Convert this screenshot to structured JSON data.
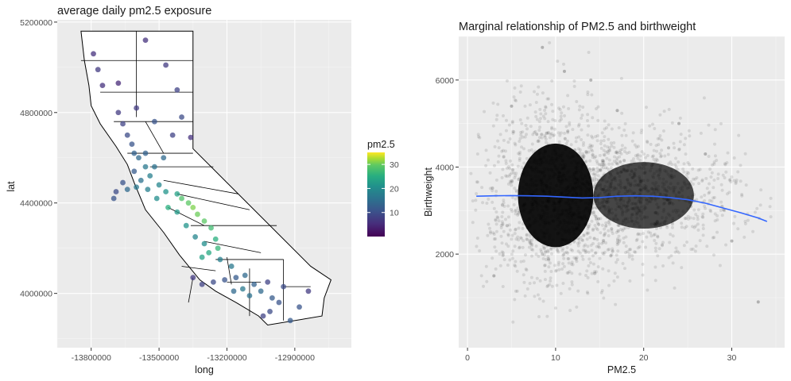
{
  "chart_data": [
    {
      "type": "scatter",
      "title": "average daily pm2.5 exposure",
      "xlabel": "long",
      "ylabel": "lat",
      "xlim": [
        -13950000,
        -12650000
      ],
      "ylim": [
        3760000,
        5210000
      ],
      "x_ticks": [
        -13800000,
        -13500000,
        -13200000,
        -12900000
      ],
      "x_tick_labels": [
        "-13800000",
        "-13500000",
        "-13200000",
        "-12900000"
      ],
      "y_ticks": [
        4000000,
        4400000,
        4800000,
        5200000
      ],
      "y_tick_labels": [
        "4000000",
        "4400000",
        "4800000",
        "5200000"
      ],
      "grid": true,
      "legend": {
        "title": "pm2.5",
        "placement": "right",
        "type": "colorbar",
        "colormap": "viridis",
        "range": [
          0,
          35
        ],
        "ticks": [
          10,
          20,
          30
        ],
        "tick_labels": [
          "10",
          "20",
          "30"
        ]
      },
      "outline": [
        [
          -13845000,
          5160000
        ],
        [
          -13350000,
          5160000
        ],
        [
          -13350000,
          4640000
        ],
        [
          -12830000,
          4120000
        ],
        [
          -12740000,
          4060000
        ],
        [
          -12770000,
          3980000
        ],
        [
          -12780000,
          3900000
        ],
        [
          -13020000,
          3860000
        ],
        [
          -13060000,
          3900000
        ],
        [
          -13160000,
          3960000
        ],
        [
          -13250000,
          4010000
        ],
        [
          -13320000,
          4060000
        ],
        [
          -13410000,
          4170000
        ],
        [
          -13480000,
          4270000
        ],
        [
          -13560000,
          4370000
        ],
        [
          -13610000,
          4490000
        ],
        [
          -13640000,
          4570000
        ],
        [
          -13690000,
          4650000
        ],
        [
          -13760000,
          4750000
        ],
        [
          -13800000,
          4830000
        ],
        [
          -13810000,
          4920000
        ],
        [
          -13830000,
          5030000
        ],
        [
          -13845000,
          5160000
        ]
      ],
      "series": [
        {
          "points": [
            [
              -13460000,
              4380000,
              22
            ],
            [
              -13400000,
              4420000,
              25
            ],
            [
              -13350000,
              4380000,
              28
            ],
            [
              -13330000,
              4350000,
              27
            ],
            [
              -13300000,
              4320000,
              26
            ],
            [
              -13270000,
              4290000,
              24
            ],
            [
              -13250000,
              4240000,
              22
            ],
            [
              -13240000,
              4200000,
              23
            ],
            [
              -13280000,
              4180000,
              21
            ],
            [
              -13310000,
              4160000,
              20
            ],
            [
              -13370000,
              4400000,
              26
            ],
            [
              -13420000,
              4440000,
              20
            ],
            [
              -13470000,
              4450000,
              18
            ],
            [
              -13500000,
              4480000,
              16
            ],
            [
              -13540000,
              4520000,
              15
            ],
            [
              -13560000,
              4560000,
              14
            ],
            [
              -13590000,
              4600000,
              12
            ],
            [
              -13610000,
              4620000,
              11
            ],
            [
              -13620000,
              4660000,
              9
            ],
            [
              -13640000,
              4700000,
              8
            ],
            [
              -13660000,
              4750000,
              7
            ],
            [
              -13680000,
              4800000,
              6
            ],
            [
              -13520000,
              4560000,
              13
            ],
            [
              -13480000,
              4600000,
              12
            ],
            [
              -13560000,
              4620000,
              11
            ],
            [
              -13610000,
              4540000,
              10
            ],
            [
              -13660000,
              4490000,
              9
            ],
            [
              -13690000,
              4450000,
              8
            ],
            [
              -13700000,
              4420000,
              9
            ],
            [
              -13640000,
              4460000,
              12
            ],
            [
              -13600000,
              4470000,
              14
            ],
            [
              -13580000,
              4500000,
              13
            ],
            [
              -13550000,
              4460000,
              15
            ],
            [
              -13510000,
              4420000,
              17
            ],
            [
              -13420000,
              4360000,
              19
            ],
            [
              -13380000,
              4300000,
              18
            ],
            [
              -13340000,
              4250000,
              16
            ],
            [
              -13300000,
              4220000,
              17
            ],
            [
              -13230000,
              4150000,
              15
            ],
            [
              -13180000,
              4120000,
              14
            ],
            [
              -13120000,
              4080000,
              12
            ],
            [
              -13160000,
              4070000,
              10
            ],
            [
              -13210000,
              4060000,
              9
            ],
            [
              -13260000,
              4050000,
              8
            ],
            [
              -13310000,
              4040000,
              7
            ],
            [
              -13350000,
              4070000,
              6
            ],
            [
              -13080000,
              4040000,
              11
            ],
            [
              -13050000,
              4010000,
              12
            ],
            [
              -13000000,
              3980000,
              10
            ],
            [
              -12970000,
              3960000,
              9
            ],
            [
              -13010000,
              3920000,
              8
            ],
            [
              -13040000,
              3900000,
              7
            ],
            [
              -13100000,
              3990000,
              13
            ],
            [
              -13130000,
              4020000,
              14
            ],
            [
              -13170000,
              4010000,
              12
            ],
            [
              -12920000,
              3880000,
              10
            ],
            [
              -12880000,
              3940000,
              9
            ],
            [
              -12950000,
              4030000,
              8
            ],
            [
              -13020000,
              4050000,
              7
            ],
            [
              -12840000,
              4010000,
              6
            ],
            [
              -13790000,
              5060000,
              5
            ],
            [
              -13770000,
              4990000,
              6
            ],
            [
              -13750000,
              4920000,
              5
            ],
            [
              -13560000,
              5120000,
              5
            ],
            [
              -13470000,
              5010000,
              6
            ],
            [
              -13420000,
              4900000,
              7
            ],
            [
              -13400000,
              4780000,
              8
            ],
            [
              -13440000,
              4700000,
              7
            ],
            [
              -13360000,
              4690000,
              5
            ],
            [
              -13520000,
              4760000,
              9
            ],
            [
              -13600000,
              4820000,
              6
            ],
            [
              -13680000,
              4930000,
              4
            ]
          ]
        }
      ]
    },
    {
      "type": "scatter",
      "title": "Marginal relationship of PM2.5 and birthweight",
      "xlabel": "PM2.5",
      "ylabel": "Birthweight",
      "xlim": [
        -1,
        36
      ],
      "ylim": [
        -150,
        7000
      ],
      "x_ticks": [
        0,
        10,
        20,
        30
      ],
      "x_tick_labels": [
        "0",
        "10",
        "20",
        "30"
      ],
      "y_ticks": [
        2000,
        4000,
        6000
      ],
      "y_tick_labels": [
        "2000",
        "4000",
        "6000"
      ],
      "grid": true,
      "smooth_line": {
        "color": "#3366ff",
        "x": [
          1,
          3,
          5,
          7,
          9,
          11,
          13,
          15,
          17,
          19,
          21,
          23,
          25,
          27,
          29,
          31,
          33,
          34
        ],
        "y": [
          3330,
          3340,
          3345,
          3340,
          3330,
          3310,
          3290,
          3300,
          3330,
          3340,
          3330,
          3300,
          3250,
          3170,
          3060,
          2950,
          2830,
          2750
        ]
      },
      "series": [
        {
          "color": "#000000",
          "dense_regions": [
            {
              "x_center": 10,
              "y_center": 3350,
              "x_spread": 4.5,
              "y_spread": 1400
            },
            {
              "x_center": 20,
              "y_center": 3350,
              "x_spread": 6,
              "y_spread": 900
            }
          ],
          "outliers": [
            [
              8.5,
              6750
            ],
            [
              11,
              6200
            ],
            [
              24,
              5000
            ],
            [
              27,
              4300
            ],
            [
              30,
              2300
            ],
            [
              33,
              900
            ],
            [
              3,
              1500
            ],
            [
              5,
              5400
            ],
            [
              14,
              6000
            ],
            [
              17,
              5300
            ]
          ]
        }
      ]
    }
  ]
}
